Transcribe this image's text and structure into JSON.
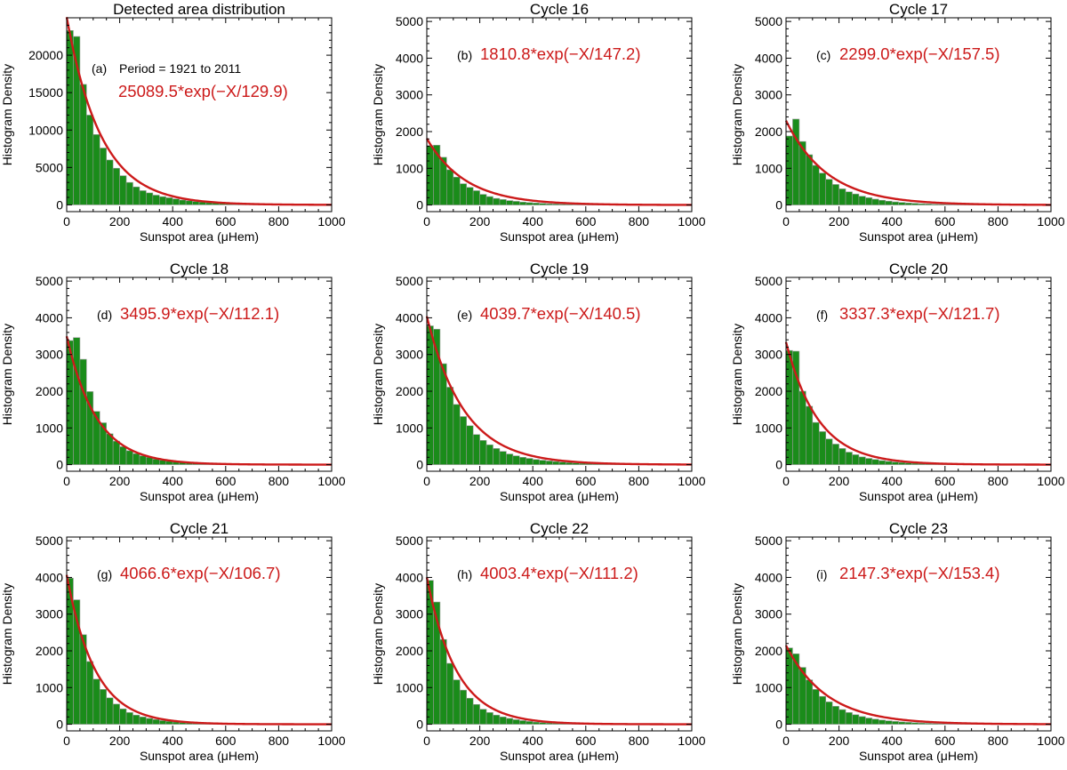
{
  "colors": {
    "bar_fill": "#1a8c1a",
    "bar_edge": "#9a9a9a",
    "fit_line": "#cc1a1a",
    "fit_label": "#cc1a1a",
    "axis": "#000000",
    "text": "#000000"
  },
  "chart_data": [
    {
      "type": "bar",
      "panel": "(a)",
      "title": "Detected area distribution",
      "xlabel": "Sunspot area (μHem)",
      "ylabel": "Histogram Density",
      "xlim": [
        0,
        1000
      ],
      "ylim": [
        -900,
        25000
      ],
      "xticks": [
        0,
        200,
        400,
        600,
        800,
        1000
      ],
      "yticks": [
        0,
        5000,
        10000,
        15000,
        20000
      ],
      "period_label": "Period = 1921 to 2011",
      "fit_label": "25089.5*exp(−X/129.9)",
      "fit": {
        "amplitude": 25089.5,
        "scale": 129.9
      },
      "bin_width": 25,
      "values": [
        23300,
        22500,
        16100,
        12000,
        9400,
        7600,
        6000,
        4900,
        3900,
        3000,
        2400,
        1900,
        1600,
        1300,
        1100,
        950,
        800,
        650,
        550,
        450,
        380,
        300,
        250,
        200,
        160,
        130,
        100,
        80,
        60,
        50,
        40,
        30,
        25,
        20,
        15,
        10,
        8,
        6,
        4,
        3
      ]
    },
    {
      "type": "bar",
      "panel": "(b)",
      "title": "Cycle 16",
      "xlabel": "Sunspot area (μHem)",
      "ylabel": "Histogram Density",
      "xlim": [
        0,
        1000
      ],
      "ylim": [
        -180,
        5100
      ],
      "xticks": [
        0,
        200,
        400,
        600,
        800,
        1000
      ],
      "yticks": [
        0,
        1000,
        2000,
        3000,
        4000,
        5000
      ],
      "fit_label": "1810.8*exp(−X/147.2)",
      "fit": {
        "amplitude": 1810.8,
        "scale": 147.2
      },
      "bin_width": 25,
      "values": [
        1620,
        1630,
        1300,
        960,
        760,
        580,
        480,
        390,
        290,
        230,
        180,
        150,
        120,
        100,
        80,
        65,
        55,
        45,
        35,
        30,
        25,
        20,
        15,
        12,
        10,
        8,
        6,
        5,
        4,
        3,
        3,
        2,
        2,
        1,
        1,
        1,
        1,
        0,
        0,
        0
      ]
    },
    {
      "type": "bar",
      "panel": "(c)",
      "title": "Cycle 17",
      "xlabel": "Sunspot area (μHem)",
      "ylabel": "Histogram Density",
      "xlim": [
        0,
        1000
      ],
      "ylim": [
        -180,
        5100
      ],
      "xticks": [
        0,
        200,
        400,
        600,
        800,
        1000
      ],
      "yticks": [
        0,
        1000,
        2000,
        3000,
        4000,
        5000
      ],
      "fit_label": "2299.0*exp(−X/157.5)",
      "fit": {
        "amplitude": 2299.0,
        "scale": 157.5
      },
      "bin_width": 25,
      "values": [
        1880,
        2340,
        1730,
        1370,
        1080,
        870,
        700,
        560,
        440,
        360,
        300,
        240,
        200,
        160,
        130,
        105,
        85,
        70,
        55,
        45,
        36,
        30,
        24,
        20,
        16,
        12,
        10,
        8,
        6,
        5,
        4,
        3,
        3,
        2,
        2,
        1,
        1,
        1,
        0,
        0
      ]
    },
    {
      "type": "bar",
      "panel": "(d)",
      "title": "Cycle 18",
      "xlabel": "Sunspot area (μHem)",
      "ylabel": "Histogram Density",
      "xlim": [
        0,
        1000
      ],
      "ylim": [
        -180,
        5100
      ],
      "xticks": [
        0,
        200,
        400,
        600,
        800,
        1000
      ],
      "yticks": [
        0,
        1000,
        2000,
        3000,
        4000,
        5000
      ],
      "fit_label": "3495.9*exp(−X/112.1)",
      "fit": {
        "amplitude": 3495.9,
        "scale": 112.1
      },
      "bin_width": 25,
      "values": [
        3380,
        3460,
        2870,
        1990,
        1450,
        1140,
        840,
        640,
        490,
        380,
        300,
        240,
        200,
        150,
        120,
        95,
        75,
        60,
        45,
        35,
        28,
        22,
        17,
        13,
        10,
        8,
        6,
        5,
        4,
        3,
        2,
        2,
        1,
        1,
        1,
        0,
        0,
        0,
        0,
        0
      ]
    },
    {
      "type": "bar",
      "panel": "(e)",
      "title": "Cycle 19",
      "xlabel": "Sunspot area (μHem)",
      "ylabel": "Histogram Density",
      "xlim": [
        0,
        1000
      ],
      "ylim": [
        -180,
        5100
      ],
      "xticks": [
        0,
        200,
        400,
        600,
        800,
        1000
      ],
      "yticks": [
        0,
        1000,
        2000,
        3000,
        4000,
        5000
      ],
      "fit_label": "4039.7*exp(−X/140.5)",
      "fit": {
        "amplitude": 4039.7,
        "scale": 140.5
      },
      "bin_width": 25,
      "values": [
        3780,
        3690,
        2750,
        2110,
        1640,
        1310,
        1060,
        820,
        660,
        540,
        440,
        360,
        290,
        240,
        200,
        170,
        140,
        120,
        100,
        85,
        70,
        55,
        45,
        36,
        30,
        24,
        20,
        16,
        12,
        10,
        8,
        6,
        5,
        4,
        3,
        2,
        2,
        1,
        1,
        1
      ]
    },
    {
      "type": "bar",
      "panel": "(f)",
      "title": "Cycle 20",
      "xlabel": "Sunspot area (μHem)",
      "ylabel": "Histogram Density",
      "xlim": [
        0,
        1000
      ],
      "ylim": [
        -180,
        5100
      ],
      "xticks": [
        0,
        200,
        400,
        600,
        800,
        1000
      ],
      "yticks": [
        0,
        1000,
        2000,
        3000,
        4000,
        5000
      ],
      "fit_label": "3337.3*exp(−X/121.7)",
      "fit": {
        "amplitude": 3337.3,
        "scale": 121.7
      },
      "bin_width": 25,
      "values": [
        3110,
        3090,
        2000,
        1590,
        1150,
        900,
        700,
        560,
        440,
        340,
        270,
        210,
        170,
        140,
        110,
        90,
        72,
        58,
        46,
        36,
        29,
        23,
        18,
        14,
        11,
        9,
        7,
        5,
        4,
        3,
        2,
        2,
        1,
        1,
        1,
        0,
        0,
        0,
        0,
        0
      ]
    },
    {
      "type": "bar",
      "panel": "(g)",
      "title": "Cycle 21",
      "xlabel": "Sunspot area (μHem)",
      "ylabel": "Histogram Density",
      "xlim": [
        0,
        1000
      ],
      "ylim": [
        -180,
        5100
      ],
      "xticks": [
        0,
        200,
        400,
        600,
        800,
        1000
      ],
      "yticks": [
        0,
        1000,
        2000,
        3000,
        4000,
        5000
      ],
      "fit_label": "4066.6*exp(−X/106.7)",
      "fit": {
        "amplitude": 4066.6,
        "scale": 106.7
      },
      "bin_width": 25,
      "values": [
        3980,
        3390,
        2440,
        1710,
        1230,
        950,
        720,
        550,
        420,
        320,
        250,
        200,
        160,
        130,
        100,
        80,
        62,
        48,
        37,
        28,
        22,
        17,
        13,
        10,
        8,
        6,
        5,
        4,
        3,
        2,
        2,
        1,
        1,
        1,
        0,
        0,
        0,
        0,
        0,
        0
      ]
    },
    {
      "type": "bar",
      "panel": "(h)",
      "title": "Cycle 22",
      "xlabel": "Sunspot area (μHem)",
      "ylabel": "Histogram Density",
      "xlim": [
        0,
        1000
      ],
      "ylim": [
        -180,
        5100
      ],
      "xticks": [
        0,
        200,
        400,
        600,
        800,
        1000
      ],
      "yticks": [
        0,
        1000,
        2000,
        3000,
        4000,
        5000
      ],
      "fit_label": "4003.4*exp(−X/111.2)",
      "fit": {
        "amplitude": 4003.4,
        "scale": 111.2
      },
      "bin_width": 25,
      "values": [
        3920,
        3330,
        2310,
        1660,
        1210,
        930,
        710,
        540,
        410,
        320,
        250,
        200,
        160,
        125,
        100,
        78,
        60,
        47,
        36,
        28,
        22,
        17,
        13,
        10,
        8,
        6,
        5,
        4,
        3,
        2,
        2,
        1,
        1,
        1,
        0,
        0,
        0,
        0,
        0,
        0
      ]
    },
    {
      "type": "bar",
      "panel": "(i)",
      "title": "Cycle 23",
      "xlabel": "Sunspot area (μHem)",
      "ylabel": "Histogram Density",
      "xlim": [
        0,
        1000
      ],
      "ylim": [
        -180,
        5100
      ],
      "xticks": [
        0,
        200,
        400,
        600,
        800,
        1000
      ],
      "yticks": [
        0,
        1000,
        2000,
        3000,
        4000,
        5000
      ],
      "fit_label": "2147.3*exp(−X/153.4)",
      "fit": {
        "amplitude": 2147.3,
        "scale": 153.4
      },
      "bin_width": 25,
      "values": [
        2080,
        1920,
        1550,
        1210,
        950,
        760,
        610,
        490,
        400,
        320,
        260,
        210,
        170,
        140,
        115,
        95,
        78,
        64,
        52,
        42,
        34,
        27,
        22,
        18,
        14,
        11,
        9,
        7,
        5,
        4,
        3,
        3,
        2,
        2,
        1,
        1,
        1,
        0,
        0,
        0
      ]
    }
  ]
}
